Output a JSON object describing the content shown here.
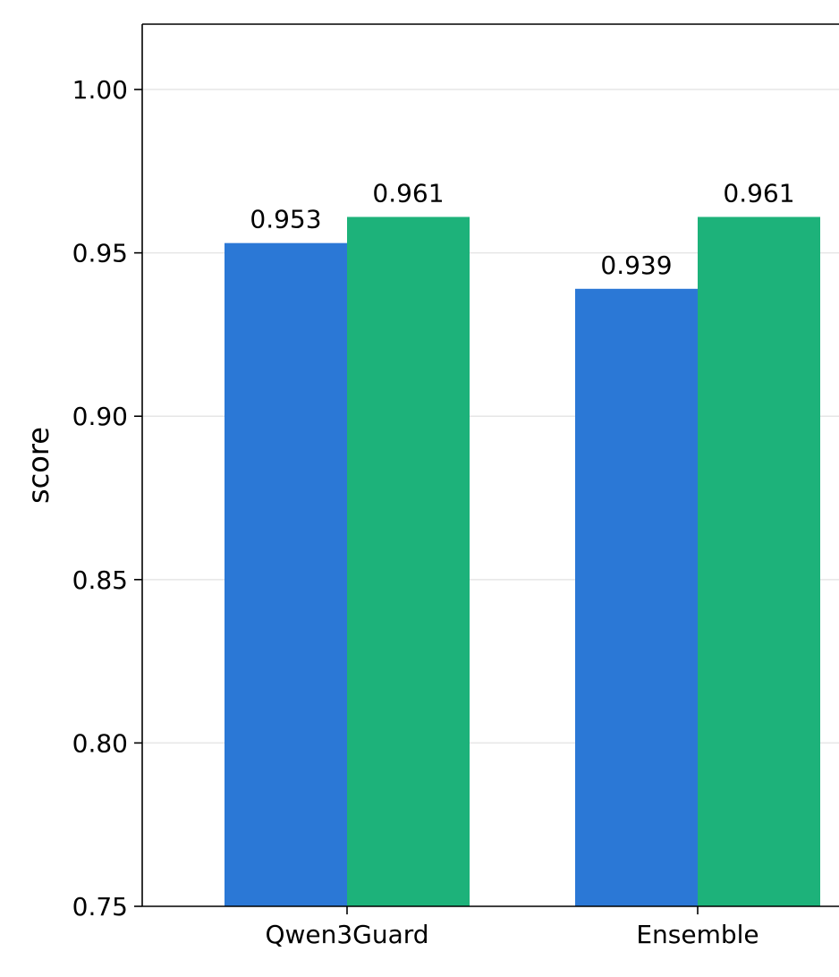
{
  "chart_data": {
    "type": "bar",
    "title": "",
    "xlabel": "",
    "ylabel": "score",
    "ylim": [
      0.75,
      1.02
    ],
    "yticks": [
      0.75,
      0.8,
      0.85,
      0.9,
      0.95,
      1.0
    ],
    "ytick_labels": [
      "0.75",
      "0.80",
      "0.85",
      "0.90",
      "0.95",
      "1.00"
    ],
    "grid": "horizontal",
    "legend": "none",
    "categories": [
      "Qwen3Guard",
      "Ensemble"
    ],
    "series": [
      {
        "color": "#2b78d6",
        "values": [
          0.953,
          0.939
        ],
        "labels": [
          "0.953",
          "0.939"
        ]
      },
      {
        "color": "#1db27a",
        "values": [
          0.961,
          0.961
        ],
        "labels": [
          "0.961",
          "0.961"
        ]
      }
    ]
  }
}
